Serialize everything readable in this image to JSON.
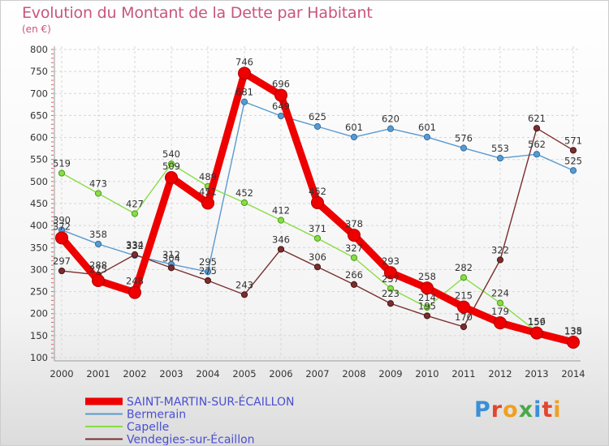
{
  "header": {
    "title": "Evolution du Montant de la Dette par Habitant",
    "subtitle": "(en €)"
  },
  "brand": {
    "logo_text": "Proxiti",
    "letter_colors": [
      "#3a8fd8",
      "#e2462f",
      "#f0a020",
      "#4aa84a",
      "#3a8fd8",
      "#e2462f",
      "#f0a020"
    ]
  },
  "chart_data": {
    "type": "line",
    "title": "Evolution du Montant de la Dette par Habitant",
    "subtitle": "(en €)",
    "xlabel": "",
    "ylabel": "",
    "x": [
      "2000",
      "2001",
      "2002",
      "2003",
      "2004",
      "2005",
      "2006",
      "2007",
      "2008",
      "2009",
      "2010",
      "2011",
      "2012",
      "2013",
      "2014"
    ],
    "ylim": [
      100,
      800
    ],
    "yticks": [
      100,
      150,
      200,
      250,
      300,
      350,
      400,
      450,
      500,
      550,
      600,
      650,
      700,
      750,
      800
    ],
    "grid": true,
    "legend_position": "bottom-left",
    "series": [
      {
        "name": "SAINT-MARTIN-SUR-ÉCAILLON",
        "color": "#ee0000",
        "emphasis": true,
        "values": [
          372,
          275,
          248,
          509,
          451,
          746,
          696,
          452,
          378,
          293,
          258,
          215,
          179,
          156,
          135
        ]
      },
      {
        "name": "Bermerain",
        "color": "#5a9ad0",
        "values": [
          390,
          358,
          332,
          312,
          295,
          681,
          649,
          625,
          601,
          620,
          601,
          576,
          553,
          562,
          525
        ]
      },
      {
        "name": "Capelle",
        "color": "#88dd44",
        "values": [
          519,
          473,
          427,
          540,
          489,
          452,
          412,
          371,
          327,
          257,
          214,
          282,
          224,
          159,
          138
        ]
      },
      {
        "name": "Vendegies-sur-Écaillon",
        "color": "#7a2e2e",
        "values": [
          297,
          288,
          334,
          304,
          275,
          243,
          346,
          306,
          266,
          223,
          195,
          170,
          322,
          621,
          571
        ]
      }
    ]
  }
}
